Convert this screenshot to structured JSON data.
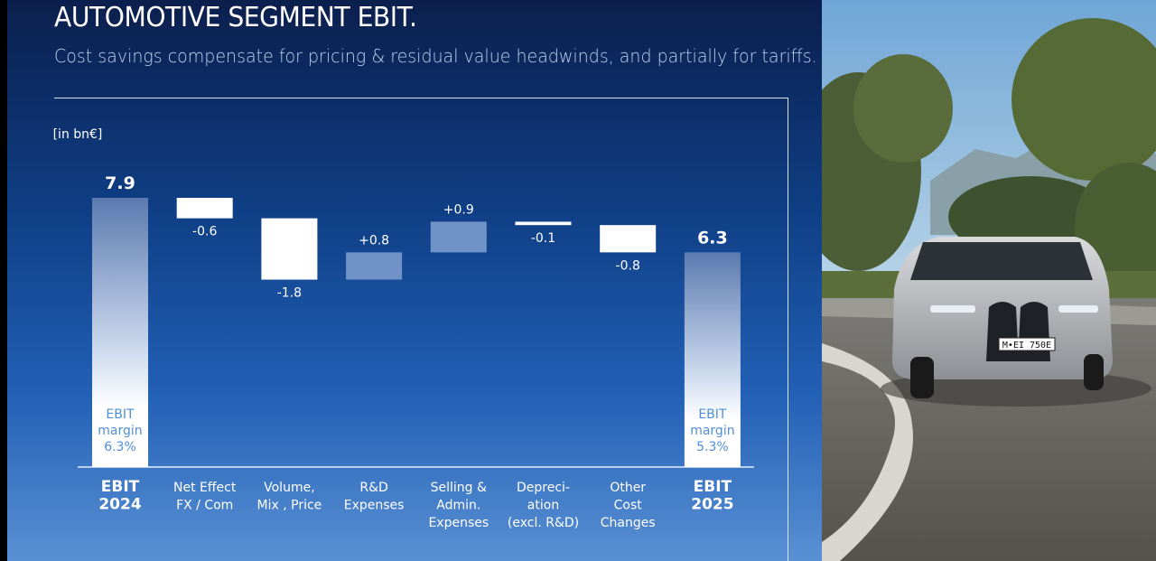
{
  "slide": {
    "title": "AUTOMOTIVE SEGMENT EBIT.",
    "subtitle": "Cost savings compensate for pricing & residual value headwinds, and partially for tariffs."
  },
  "photo": {
    "plate": "M•EI 750E"
  },
  "colors": {
    "total_bar_top": "#5b7ab0",
    "white_bar": "#ffffff",
    "positive_bar": "#6f93c7",
    "margin_text": "#4f8fd6",
    "label_text": "#ffffff"
  },
  "chart_data": {
    "type": "bar",
    "subtype": "waterfall",
    "unit_label": "[in bn€]",
    "ylim": [
      0,
      8.5
    ],
    "grid": false,
    "legend": "none",
    "steps": [
      {
        "kind": "total",
        "value": 7.9,
        "label": "7.9",
        "category": [
          "EBIT",
          "2024"
        ],
        "note": [
          "EBIT",
          "margin",
          "6.3%"
        ]
      },
      {
        "kind": "delta",
        "value": -0.6,
        "label": "-0.6",
        "category": [
          "Net Effect",
          "FX / Com"
        ]
      },
      {
        "kind": "delta",
        "value": -1.8,
        "label": "-1.8",
        "category": [
          "Volume,",
          "Mix , Price"
        ]
      },
      {
        "kind": "delta",
        "value": 0.8,
        "label": "+0.8",
        "category": [
          "R&D",
          "Expenses"
        ]
      },
      {
        "kind": "delta",
        "value": 0.9,
        "label": "+0.9",
        "category": [
          "Selling &",
          "Admin.",
          "Expenses"
        ]
      },
      {
        "kind": "delta",
        "value": -0.1,
        "label": "-0.1",
        "category": [
          "Depreci-",
          "ation",
          "(excl. R&D)"
        ]
      },
      {
        "kind": "delta",
        "value": -0.8,
        "label": "-0.8",
        "category": [
          "Other",
          "Cost",
          "Changes"
        ]
      },
      {
        "kind": "total",
        "value": 6.3,
        "label": "6.3",
        "category": [
          "EBIT",
          "2025"
        ],
        "note": [
          "EBIT",
          "margin",
          "5.3%"
        ]
      }
    ]
  }
}
